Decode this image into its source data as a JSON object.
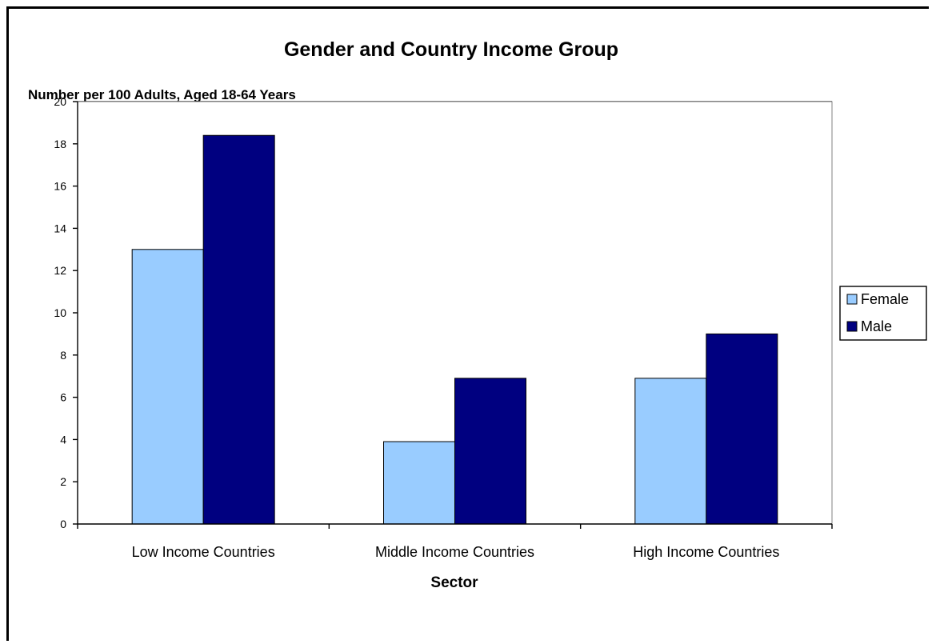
{
  "chart_data": {
    "type": "bar",
    "title": "Gender and Country Income Group",
    "ylabel": "Number per 100 Adults, Aged 18-64 Years",
    "xlabel": "Sector",
    "categories": [
      "Low Income Countries",
      "Middle Income Countries",
      "High Income Countries"
    ],
    "series": [
      {
        "name": "Female",
        "values": [
          13.0,
          3.9,
          6.9
        ],
        "color": "#99ccff"
      },
      {
        "name": "Male",
        "values": [
          18.4,
          6.9,
          9.0
        ],
        "color": "#000080"
      }
    ],
    "ylim": [
      0,
      20
    ],
    "yticks": [
      "0",
      "2",
      "4",
      "6",
      "8",
      "10",
      "12",
      "14",
      "16",
      "18",
      "20"
    ],
    "grid": true,
    "legend": "right",
    "colors": {
      "plot_background": "#ffffff",
      "gridline": "#000000"
    }
  }
}
